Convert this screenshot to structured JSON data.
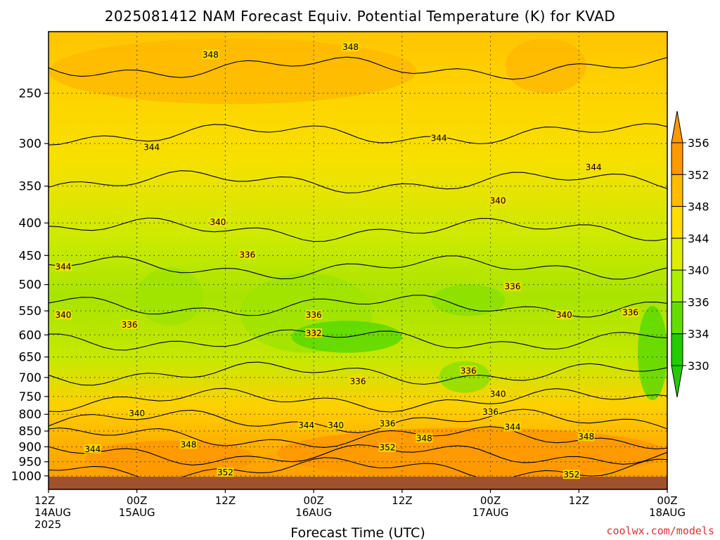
{
  "chart_data": {
    "type": "heatmap",
    "title": "2025081412 NAM Forecast Equiv. Potential Temperature (K) for KVAD",
    "xlabel": "Forecast Time (UTC)",
    "ylabel": "",
    "y_scale": "log",
    "y_reversed": true,
    "ylim": [
      1050,
      200
    ],
    "y_ticks": [
      250,
      300,
      350,
      400,
      450,
      500,
      550,
      600,
      650,
      700,
      750,
      800,
      850,
      900,
      950,
      1000
    ],
    "x_range_hours": [
      0,
      84
    ],
    "x_ticks": [
      {
        "hour": 0,
        "line1": "12Z",
        "line2": "14AUG",
        "line3": "2025"
      },
      {
        "hour": 12,
        "line1": "00Z",
        "line2": "15AUG",
        "line3": ""
      },
      {
        "hour": 24,
        "line1": "12Z",
        "line2": "",
        "line3": ""
      },
      {
        "hour": 36,
        "line1": "00Z",
        "line2": "16AUG",
        "line3": ""
      },
      {
        "hour": 48,
        "line1": "12Z",
        "line2": "",
        "line3": ""
      },
      {
        "hour": 60,
        "line1": "00Z",
        "line2": "17AUG",
        "line3": ""
      },
      {
        "hour": 72,
        "line1": "12Z",
        "line2": "",
        "line3": ""
      },
      {
        "hour": 84,
        "line1": "00Z",
        "line2": "18AUG",
        "line3": ""
      }
    ],
    "grid": true,
    "colorbar": {
      "position": "right",
      "levels": [
        330,
        334,
        336,
        340,
        344,
        348,
        352,
        356
      ],
      "labels": [
        "330",
        "334",
        "336",
        "340",
        "344",
        "348",
        "352",
        "356"
      ],
      "colors": [
        "#22cc00",
        "#66dd00",
        "#aaee00",
        "#dded00",
        "#ffdd00",
        "#ffbb00",
        "#ff9900"
      ],
      "extend_low_color": "#22cc00",
      "extend_high_color": "#ff9900"
    },
    "ground_color": "#a0522d",
    "contour_labels": [
      {
        "text": "348",
        "hour": 22,
        "p": 218
      },
      {
        "text": "348",
        "hour": 41,
        "p": 212
      },
      {
        "text": "344",
        "hour": 14,
        "p": 305
      },
      {
        "text": "344",
        "hour": 53,
        "p": 295
      },
      {
        "text": "344",
        "hour": 74,
        "p": 328
      },
      {
        "text": "340",
        "hour": 23,
        "p": 400
      },
      {
        "text": "340",
        "hour": 61,
        "p": 370
      },
      {
        "text": "344",
        "hour": 2,
        "p": 470
      },
      {
        "text": "336",
        "hour": 27,
        "p": 450
      },
      {
        "text": "340",
        "hour": 2,
        "p": 560
      },
      {
        "text": "336",
        "hour": 11,
        "p": 580
      },
      {
        "text": "336",
        "hour": 36,
        "p": 560
      },
      {
        "text": "332",
        "hour": 36,
        "p": 598
      },
      {
        "text": "336",
        "hour": 63,
        "p": 505
      },
      {
        "text": "340",
        "hour": 70,
        "p": 560
      },
      {
        "text": "336",
        "hour": 79,
        "p": 555
      },
      {
        "text": "336",
        "hour": 57,
        "p": 685
      },
      {
        "text": "336",
        "hour": 42,
        "p": 712
      },
      {
        "text": "340",
        "hour": 61,
        "p": 745
      },
      {
        "text": "336",
        "hour": 60,
        "p": 795
      },
      {
        "text": "340",
        "hour": 12,
        "p": 800
      },
      {
        "text": "344",
        "hour": 35,
        "p": 835
      },
      {
        "text": "340",
        "hour": 39,
        "p": 835
      },
      {
        "text": "336",
        "hour": 46,
        "p": 830
      },
      {
        "text": "344",
        "hour": 63,
        "p": 840
      },
      {
        "text": "348",
        "hour": 51,
        "p": 875
      },
      {
        "text": "352",
        "hour": 46,
        "p": 905
      },
      {
        "text": "348",
        "hour": 19,
        "p": 895
      },
      {
        "text": "344",
        "hour": 6,
        "p": 910
      },
      {
        "text": "348",
        "hour": 73,
        "p": 870
      },
      {
        "text": "352",
        "hour": 24,
        "p": 990
      },
      {
        "text": "352",
        "hour": 71,
        "p": 998
      }
    ]
  },
  "credit": "coolwx.com/models"
}
